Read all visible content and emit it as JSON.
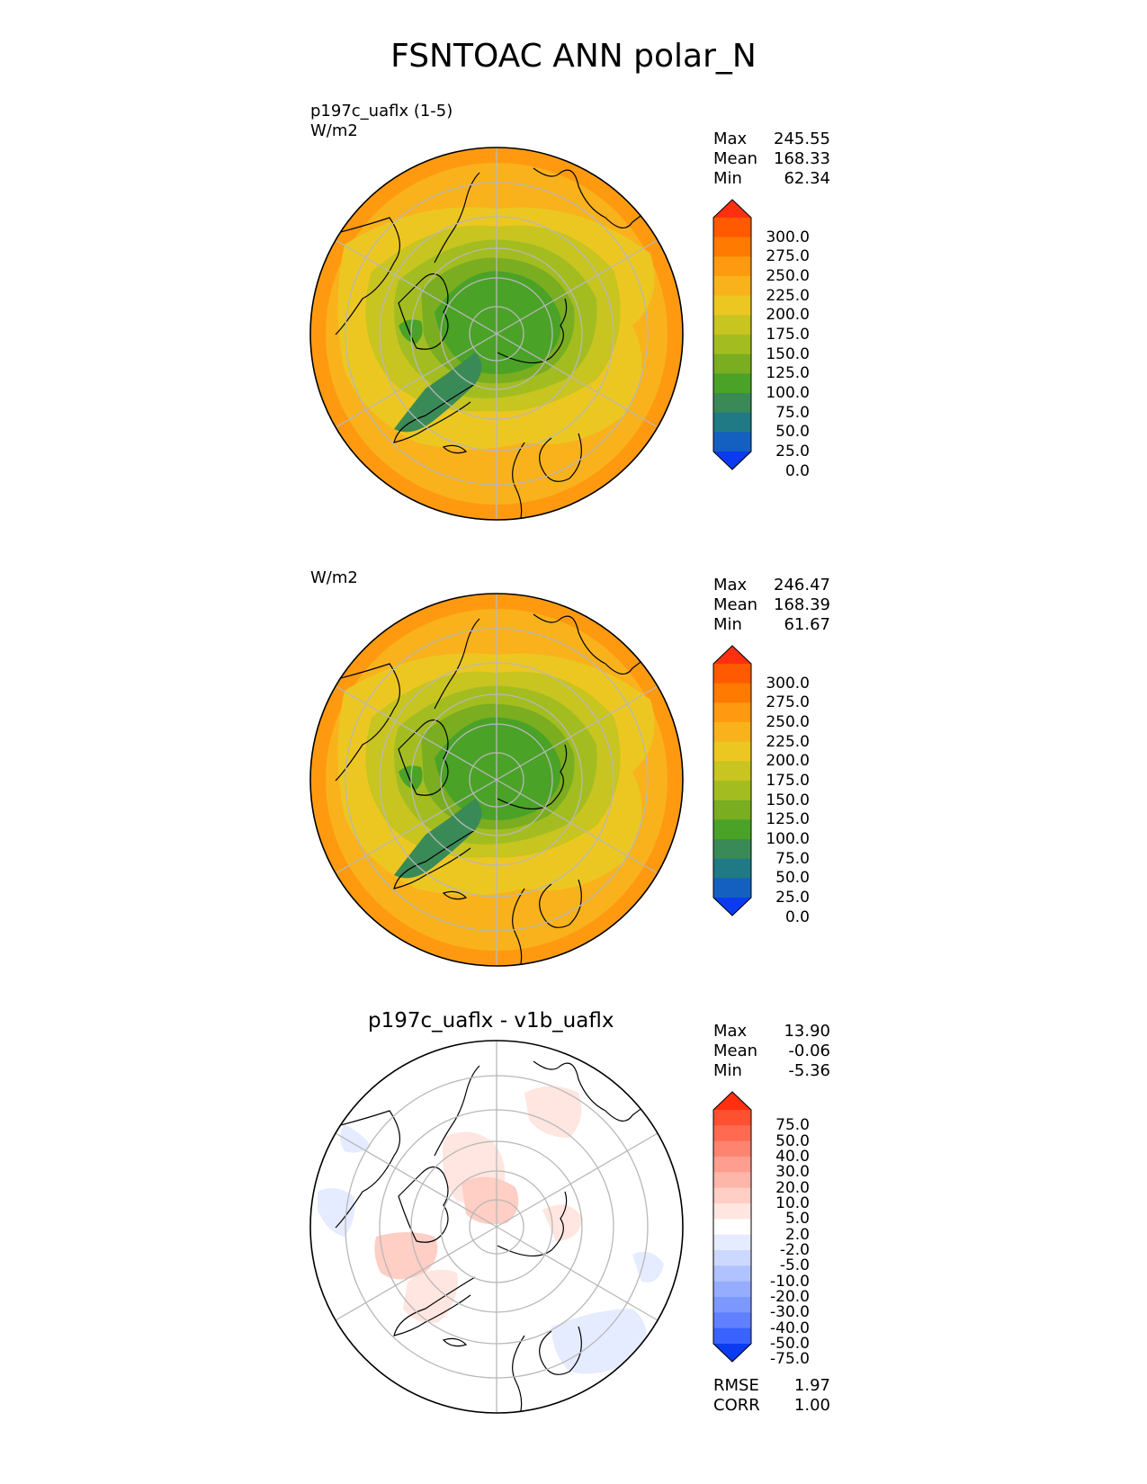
{
  "page_title": "FSNTOAC ANN polar_N",
  "chart_data": [
    {
      "type": "heatmap",
      "projection": "north polar stereographic",
      "title": "",
      "subtitle_lines": [
        "p197c_uaflx (1-5)",
        "W/m2"
      ],
      "stats": [
        {
          "label": "Max",
          "value": "245.55"
        },
        {
          "label": "Mean",
          "value": "168.33"
        },
        {
          "label": "Min",
          "value": "62.34"
        }
      ],
      "colorbar": {
        "levels": [
          "300.0",
          "275.0",
          "250.0",
          "225.0",
          "200.0",
          "175.0",
          "150.0",
          "125.0",
          "100.0",
          "75.0",
          "50.0",
          "25.0",
          "0.0"
        ],
        "colors": [
          "#ff3010",
          "#ff5a00",
          "#ff7a00",
          "#ff9a10",
          "#f9b21c",
          "#ecc722",
          "#c8c420",
          "#a3bd20",
          "#7aad20",
          "#4aa227",
          "#3a8a58",
          "#1f7a86",
          "#1460c0",
          "#0a3bf0"
        ],
        "extend": "both"
      }
    },
    {
      "type": "heatmap",
      "projection": "north polar stereographic",
      "title": "",
      "subtitle_lines": [
        "W/m2"
      ],
      "stats": [
        {
          "label": "Max",
          "value": "246.47"
        },
        {
          "label": "Mean",
          "value": "168.39"
        },
        {
          "label": "Min",
          "value": "61.67"
        }
      ],
      "colorbar": {
        "levels": [
          "300.0",
          "275.0",
          "250.0",
          "225.0",
          "200.0",
          "175.0",
          "150.0",
          "125.0",
          "100.0",
          "75.0",
          "50.0",
          "25.0",
          "0.0"
        ],
        "colors": [
          "#ff3010",
          "#ff5a00",
          "#ff7a00",
          "#ff9a10",
          "#f9b21c",
          "#ecc722",
          "#c8c420",
          "#a3bd20",
          "#7aad20",
          "#4aa227",
          "#3a8a58",
          "#1f7a86",
          "#1460c0",
          "#0a3bf0"
        ],
        "extend": "both"
      }
    },
    {
      "type": "heatmap",
      "projection": "north polar stereographic",
      "title": "p197c_uaflx - v1b_uaflx",
      "subtitle_lines": [],
      "stats": [
        {
          "label": "Max",
          "value": "13.90"
        },
        {
          "label": "Mean",
          "value": "-0.06"
        },
        {
          "label": "Min",
          "value": "-5.36"
        }
      ],
      "colorbar": {
        "levels": [
          "75.0",
          "50.0",
          "40.0",
          "30.0",
          "20.0",
          "10.0",
          "5.0",
          "2.0",
          "-2.0",
          "-5.0",
          "-10.0",
          "-20.0",
          "-30.0",
          "-40.0",
          "-50.0",
          "-75.0"
        ],
        "colors": [
          "#ff3010",
          "#ff5030",
          "#ff6a50",
          "#ff8470",
          "#ff9e90",
          "#ffb6aa",
          "#ffcec4",
          "#ffe6e0",
          "#ffffff",
          "#e6ecff",
          "#ccd8ff",
          "#b0c2ff",
          "#96adff",
          "#7c98ff",
          "#6080ff",
          "#3a62ff",
          "#0a3bf0"
        ],
        "extend": "both"
      },
      "footer_stats": [
        {
          "label": "RMSE",
          "value": "1.97"
        },
        {
          "label": "CORR",
          "value": "1.00"
        }
      ]
    }
  ]
}
